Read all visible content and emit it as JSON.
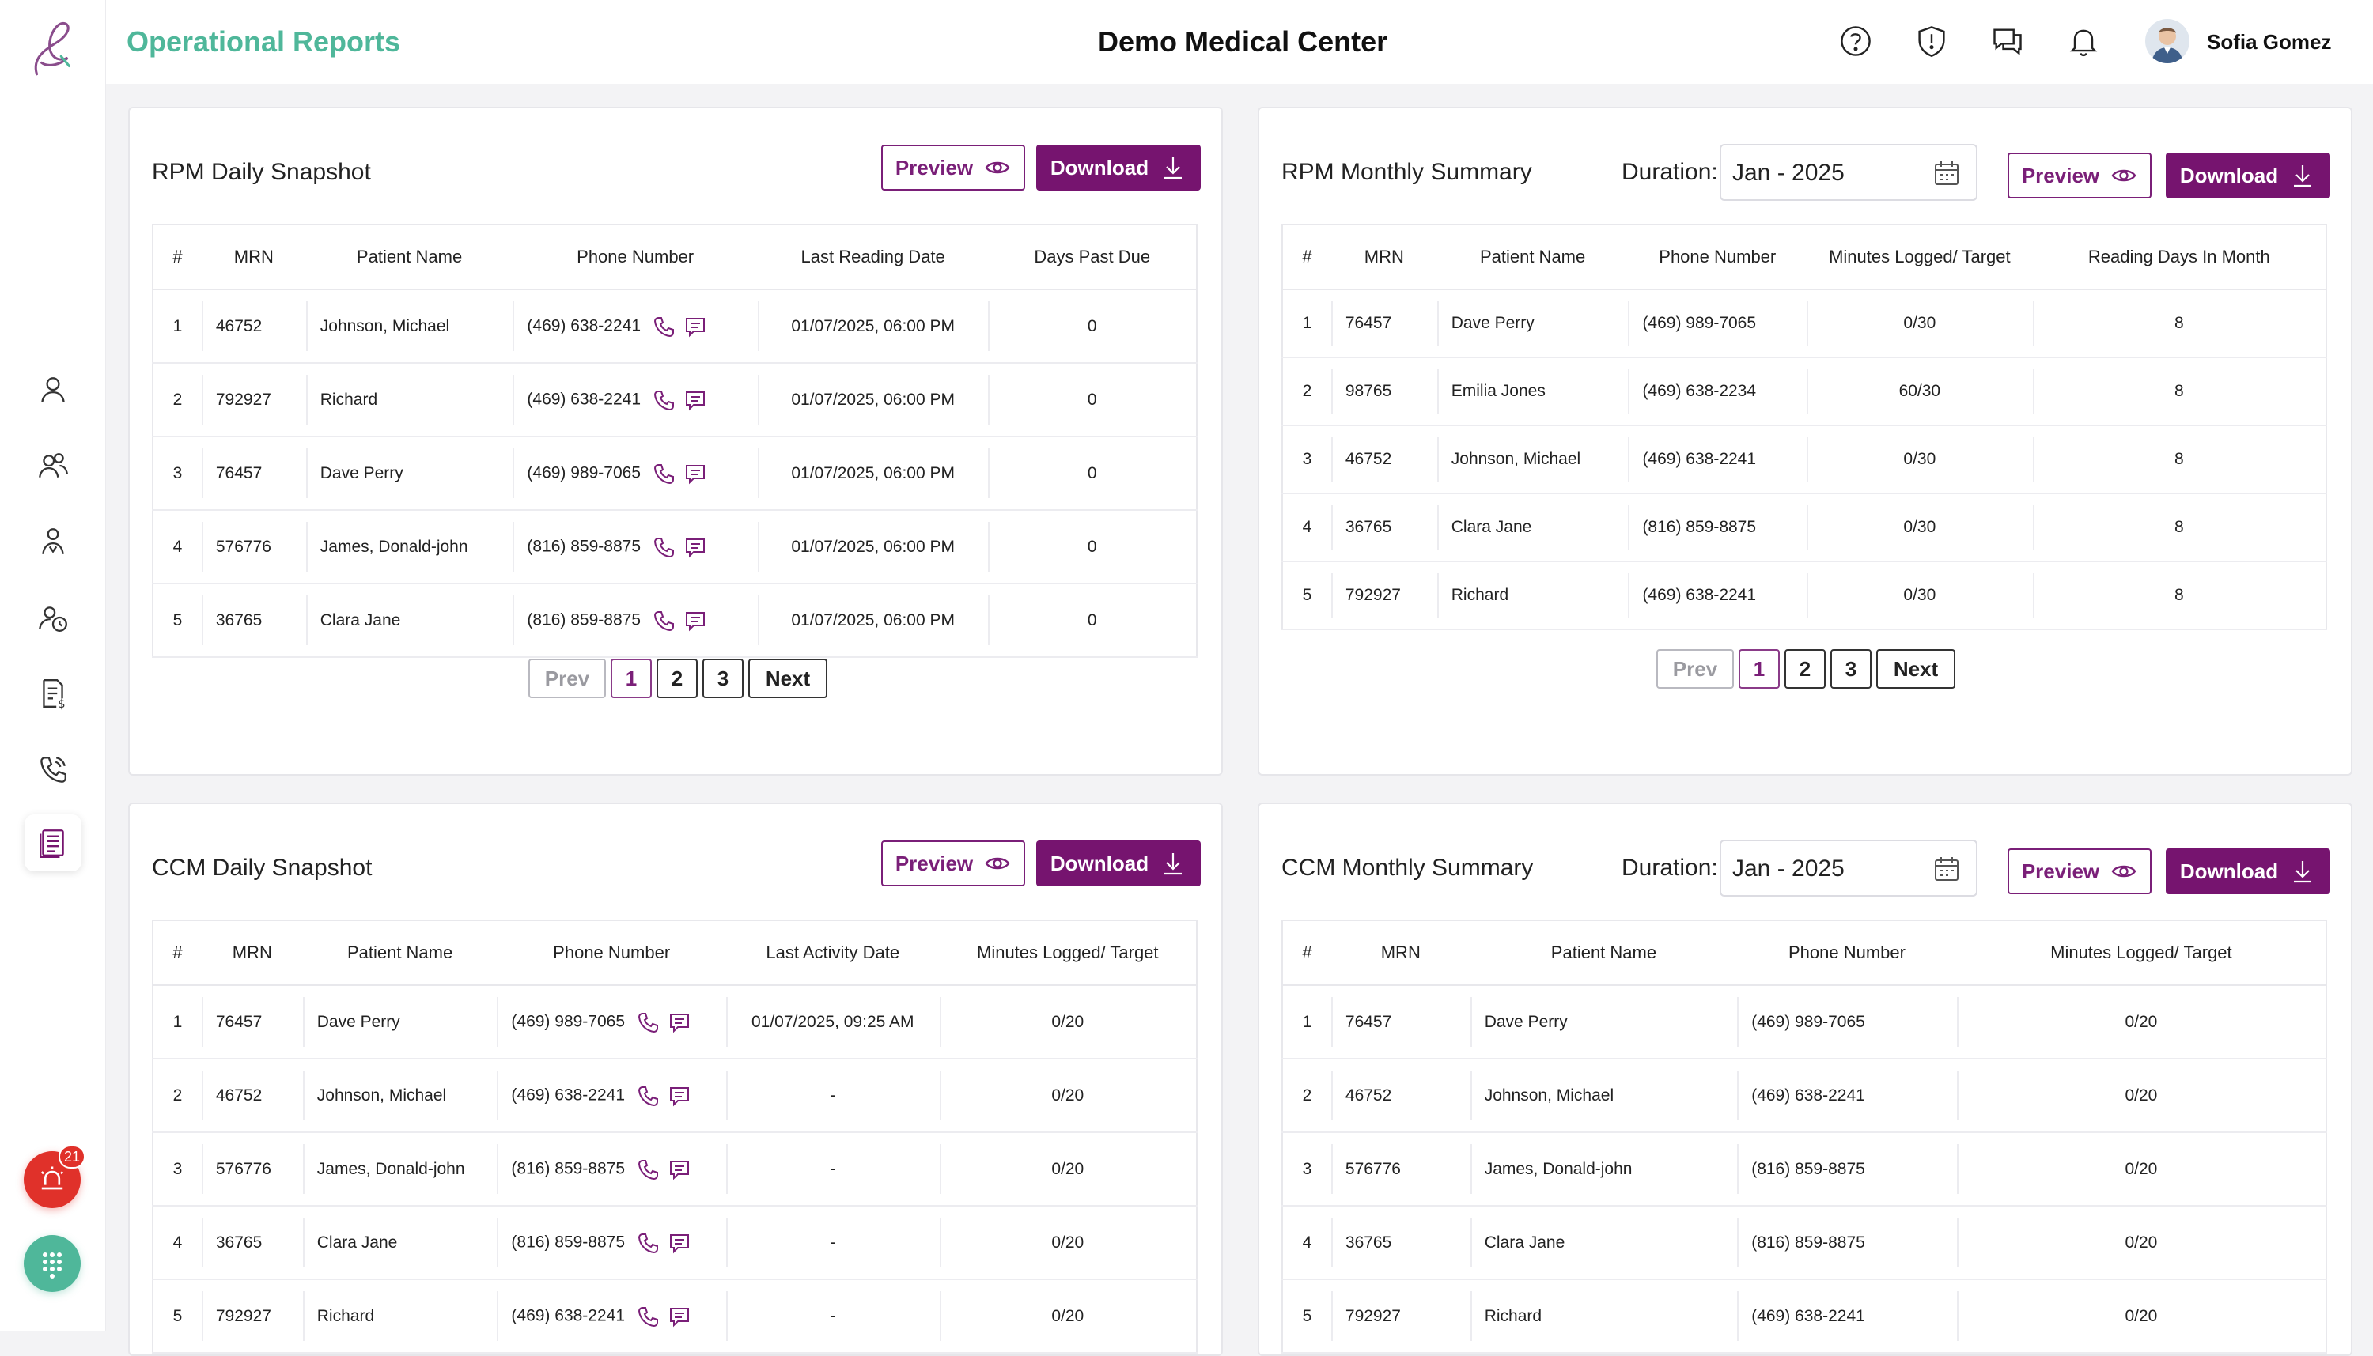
{
  "header": {
    "page_title": "Operational Reports",
    "org_name": "Demo Medical Center",
    "user_name": "Sofia Gomez",
    "icons": [
      "help-icon",
      "alert-shield-icon",
      "chat-icon",
      "bell-icon"
    ]
  },
  "sidebar": {
    "items": [
      "user-icon",
      "users-icon",
      "care-team-icon",
      "clock-user-icon",
      "billing-icon",
      "phone-icon",
      "reports-icon"
    ],
    "active": "reports-icon",
    "alert_count": "21"
  },
  "colors": {
    "brand": "#76146f",
    "accent_green": "#4fb79a",
    "danger": "#d4302b",
    "success": "#2f9a3e"
  },
  "buttons": {
    "preview": "Preview",
    "download": "Download"
  },
  "pagination": {
    "prev": "Prev",
    "next": "Next",
    "pages": [
      "1",
      "2",
      "3"
    ],
    "current": "1"
  },
  "rpm_daily": {
    "title": "RPM Daily Snapshot",
    "columns": [
      "#",
      "MRN",
      "Patient Name",
      "Phone Number",
      "Last Reading Date",
      "Days Past Due"
    ],
    "rows": [
      {
        "n": "1",
        "mrn": "46752",
        "name": "Johnson, Michael",
        "phone": "(469) 638-2241",
        "date": "01/07/2025, 06:00 PM",
        "due": "0"
      },
      {
        "n": "2",
        "mrn": "792927",
        "name": "Richard",
        "phone": "(469) 638-2241",
        "date": "01/07/2025, 06:00 PM",
        "due": "0"
      },
      {
        "n": "3",
        "mrn": "76457",
        "name": "Dave Perry",
        "phone": "(469) 989-7065",
        "date": "01/07/2025, 06:00 PM",
        "due": "0"
      },
      {
        "n": "4",
        "mrn": "576776",
        "name": "James, Donald-john",
        "phone": "(816) 859-8875",
        "date": "01/07/2025, 06:00 PM",
        "due": "0"
      },
      {
        "n": "5",
        "mrn": "36765",
        "name": "Clara Jane",
        "phone": "(816) 859-8875",
        "date": "01/07/2025, 06:00 PM",
        "due": "0"
      }
    ]
  },
  "rpm_monthly": {
    "title": "RPM Monthly Summary",
    "duration_label": "Duration:",
    "duration_value": "Jan - 2025",
    "columns": [
      "#",
      "MRN",
      "Patient Name",
      "Phone Number",
      "Minutes Logged/ Target",
      "Reading Days In Month"
    ],
    "rows": [
      {
        "n": "1",
        "mrn": "76457",
        "name": "Dave Perry",
        "phone": "(469) 989-7065",
        "minutes": "0/30",
        "status": "red",
        "days": "8"
      },
      {
        "n": "2",
        "mrn": "98765",
        "name": "Emilia Jones",
        "phone": "(469) 638-2234",
        "minutes": "60/30",
        "status": "green",
        "days": "8"
      },
      {
        "n": "3",
        "mrn": "46752",
        "name": "Johnson, Michael",
        "phone": "(469) 638-2241",
        "minutes": "0/30",
        "status": "red",
        "days": "8"
      },
      {
        "n": "4",
        "mrn": "36765",
        "name": "Clara Jane",
        "phone": "(816) 859-8875",
        "minutes": "0/30",
        "status": "red",
        "days": "8"
      },
      {
        "n": "5",
        "mrn": "792927",
        "name": "Richard",
        "phone": "(469) 638-2241",
        "minutes": "0/30",
        "status": "red",
        "days": "8"
      }
    ]
  },
  "ccm_daily": {
    "title": "CCM Daily Snapshot",
    "columns": [
      "#",
      "MRN",
      "Patient Name",
      "Phone Number",
      "Last Activity Date",
      "Minutes Logged/ Target"
    ],
    "rows": [
      {
        "n": "1",
        "mrn": "76457",
        "name": "Dave Perry",
        "phone": "(469) 989-7065",
        "date": "01/07/2025, 09:25 AM",
        "minutes": "0/20"
      },
      {
        "n": "2",
        "mrn": "46752",
        "name": "Johnson, Michael",
        "phone": "(469) 638-2241",
        "date": "-",
        "minutes": "0/20"
      },
      {
        "n": "3",
        "mrn": "576776",
        "name": "James, Donald-john",
        "phone": "(816) 859-8875",
        "date": "-",
        "minutes": "0/20"
      },
      {
        "n": "4",
        "mrn": "36765",
        "name": "Clara Jane",
        "phone": "(816) 859-8875",
        "date": "-",
        "minutes": "0/20"
      },
      {
        "n": "5",
        "mrn": "792927",
        "name": "Richard",
        "phone": "(469) 638-2241",
        "date": "-",
        "minutes": "0/20"
      }
    ]
  },
  "ccm_monthly": {
    "title": "CCM Monthly Summary",
    "duration_label": "Duration:",
    "duration_value": "Jan - 2025",
    "columns": [
      "#",
      "MRN",
      "Patient Name",
      "Phone Number",
      "Minutes Logged/ Target"
    ],
    "rows": [
      {
        "n": "1",
        "mrn": "76457",
        "name": "Dave Perry",
        "phone": "(469) 989-7065",
        "minutes": "0/20"
      },
      {
        "n": "2",
        "mrn": "46752",
        "name": "Johnson, Michael",
        "phone": "(469) 638-2241",
        "minutes": "0/20"
      },
      {
        "n": "3",
        "mrn": "576776",
        "name": "James, Donald-john",
        "phone": "(816) 859-8875",
        "minutes": "0/20"
      },
      {
        "n": "4",
        "mrn": "36765",
        "name": "Clara Jane",
        "phone": "(816) 859-8875",
        "minutes": "0/20"
      },
      {
        "n": "5",
        "mrn": "792927",
        "name": "Richard",
        "phone": "(469) 638-2241",
        "minutes": "0/20"
      }
    ]
  }
}
